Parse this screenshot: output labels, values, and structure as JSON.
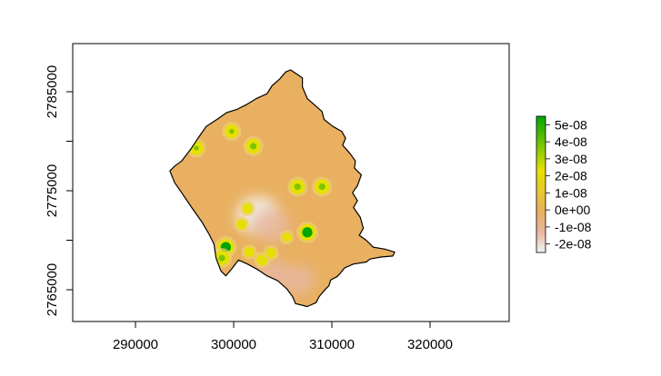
{
  "chart_data": {
    "type": "heatmap",
    "title": "",
    "xlabel": "",
    "ylabel": "",
    "x_ticks": [
      "290000",
      "300000",
      "310000",
      "320000"
    ],
    "x_tick_values": [
      290000,
      300000,
      310000,
      320000
    ],
    "y_ticks": [
      "2765000",
      "2775000",
      "2785000"
    ],
    "y_tick_values": [
      2765000,
      2775000,
      2785000
    ],
    "xlim": [
      283000,
      328000
    ],
    "ylim": [
      2762000,
      2789000
    ],
    "legend": {
      "placement": "right",
      "labels": [
        "5e-08",
        "4e-08",
        "3e-08",
        "2e-08",
        "1e-08",
        "0e+00",
        "-1e-08",
        "-2e-08"
      ],
      "values": [
        5e-08,
        4e-08,
        3e-08,
        2e-08,
        1e-08,
        0,
        -1e-08,
        -2e-08
      ],
      "range": [
        -2.5e-08,
        5.5e-08
      ],
      "colors": {
        "low": "#f2f2f2",
        "mid_low": "#e7b79f",
        "zero": "#e8b060",
        "mid_high": "#e6e000",
        "high": "#00a600"
      }
    },
    "region_fill": "#e8b060",
    "hotspots": [
      {
        "x": 296200,
        "y": 2779300,
        "value": 3.5e-08
      },
      {
        "x": 299800,
        "y": 2781000,
        "value": 3.5e-08
      },
      {
        "x": 302000,
        "y": 2779500,
        "value": 4e-08
      },
      {
        "x": 306500,
        "y": 2775400,
        "value": 4e-08
      },
      {
        "x": 309000,
        "y": 2775400,
        "value": 4e-08
      },
      {
        "x": 307500,
        "y": 2770800,
        "value": 5e-08
      },
      {
        "x": 299200,
        "y": 2769300,
        "value": 5e-08
      },
      {
        "x": 298800,
        "y": 2768200,
        "value": 4e-08
      },
      {
        "x": 301400,
        "y": 2773200,
        "value": 1.5e-08
      },
      {
        "x": 300800,
        "y": 2771600,
        "value": 1.5e-08
      },
      {
        "x": 301600,
        "y": 2768800,
        "value": 1.5e-08
      },
      {
        "x": 302900,
        "y": 2768000,
        "value": 2e-08
      },
      {
        "x": 303800,
        "y": 2768700,
        "value": 1.5e-08
      },
      {
        "x": 305400,
        "y": 2770300,
        "value": 1e-08
      }
    ],
    "negative_zones": [
      {
        "x": 302500,
        "y": 2772500,
        "value": -2e-08
      },
      {
        "x": 303800,
        "y": 2771500,
        "value": -1.5e-08
      },
      {
        "x": 304000,
        "y": 2766500,
        "value": -1.2e-08
      },
      {
        "x": 306500,
        "y": 2766000,
        "value": -1e-08
      }
    ],
    "boundary": [
      [
        305800,
        2787200
      ],
      [
        306400,
        2786800
      ],
      [
        307000,
        2786400
      ],
      [
        307000,
        2785500
      ],
      [
        307500,
        2784300
      ],
      [
        308200,
        2783700
      ],
      [
        309000,
        2783000
      ],
      [
        309200,
        2782200
      ],
      [
        310100,
        2781500
      ],
      [
        311000,
        2781000
      ],
      [
        311400,
        2780300
      ],
      [
        311100,
        2779600
      ],
      [
        311900,
        2778700
      ],
      [
        312400,
        2778000
      ],
      [
        312300,
        2777300
      ],
      [
        313000,
        2776600
      ],
      [
        312600,
        2775500
      ],
      [
        312100,
        2774800
      ],
      [
        312600,
        2774000
      ],
      [
        312200,
        2773300
      ],
      [
        312900,
        2772300
      ],
      [
        313200,
        2771200
      ],
      [
        312800,
        2770500
      ],
      [
        313500,
        2770000
      ],
      [
        314200,
        2769300
      ],
      [
        315400,
        2769100
      ],
      [
        316400,
        2768800
      ],
      [
        316200,
        2768400
      ],
      [
        315000,
        2768300
      ],
      [
        313900,
        2768100
      ],
      [
        313500,
        2767800
      ],
      [
        312200,
        2767600
      ],
      [
        311300,
        2767200
      ],
      [
        310800,
        2766600
      ],
      [
        310500,
        2766300
      ],
      [
        309900,
        2766000
      ],
      [
        309700,
        2765400
      ],
      [
        309200,
        2764900
      ],
      [
        308700,
        2764300
      ],
      [
        308400,
        2763700
      ],
      [
        307500,
        2763300
      ],
      [
        306300,
        2763600
      ],
      [
        306000,
        2764300
      ],
      [
        305400,
        2765100
      ],
      [
        304500,
        2765900
      ],
      [
        303400,
        2766400
      ],
      [
        302500,
        2767000
      ],
      [
        301400,
        2767600
      ],
      [
        300500,
        2768000
      ],
      [
        299800,
        2767100
      ],
      [
        299200,
        2766400
      ],
      [
        298700,
        2766900
      ],
      [
        298200,
        2768200
      ],
      [
        298000,
        2769600
      ],
      [
        297500,
        2770600
      ],
      [
        296800,
        2771800
      ],
      [
        295800,
        2773200
      ],
      [
        294700,
        2774800
      ],
      [
        294000,
        2775800
      ],
      [
        293500,
        2777000
      ],
      [
        294000,
        2777500
      ],
      [
        294700,
        2778000
      ],
      [
        295700,
        2779300
      ],
      [
        296500,
        2780500
      ],
      [
        297200,
        2781500
      ],
      [
        298300,
        2782200
      ],
      [
        299300,
        2782900
      ],
      [
        300300,
        2783200
      ],
      [
        301300,
        2783700
      ],
      [
        302300,
        2784300
      ],
      [
        303400,
        2784800
      ],
      [
        303900,
        2785600
      ],
      [
        304700,
        2786300
      ],
      [
        305300,
        2787000
      ],
      [
        305800,
        2787200
      ]
    ]
  }
}
